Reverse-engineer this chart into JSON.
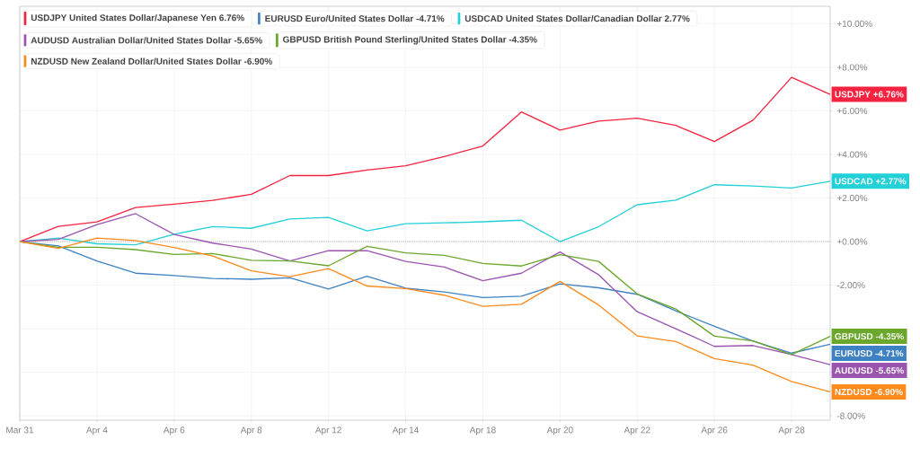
{
  "chart_data": {
    "type": "line",
    "categories": [
      "Mar 31",
      null,
      "Apr 4",
      null,
      "Apr 6",
      null,
      "Apr 8",
      null,
      "Apr 12",
      null,
      "Apr 14",
      null,
      "Apr 18",
      null,
      "Apr 20",
      null,
      "Apr 22",
      null,
      "Apr 26",
      null,
      "Apr 28",
      null
    ],
    "series": [
      {
        "name": "USDJPY   United States Dollar/Japanese Yen   6.76%",
        "color": "#f5233f",
        "values": [
          0,
          0.7,
          0.9,
          1.56,
          1.72,
          1.89,
          2.17,
          3.03,
          3.03,
          3.28,
          3.48,
          3.9,
          4.39,
          5.95,
          5.12,
          5.53,
          5.66,
          5.33,
          4.59,
          5.57,
          7.54,
          6.76
        ],
        "value_labels": [
          null,
          null,
          null,
          null,
          null,
          null,
          null,
          null,
          null,
          null,
          null,
          null,
          null,
          null,
          null,
          null,
          null,
          null,
          null,
          null,
          null,
          "USDJPY   +6.76%"
        ]
      },
      {
        "name": "EURUSD   Euro/United States Dollar   -4.71%",
        "color": "#3f82c4",
        "values": [
          0,
          -0.2,
          -0.89,
          -1.45,
          -1.56,
          -1.69,
          -1.73,
          -1.66,
          -2.18,
          -1.59,
          -2.14,
          -2.31,
          -2.57,
          -2.51,
          -1.94,
          -2.12,
          -2.42,
          -3.18,
          -3.89,
          -4.57,
          -5.12,
          -4.71
        ],
        "value_labels": [
          null,
          null,
          null,
          null,
          null,
          null,
          null,
          null,
          null,
          null,
          null,
          null,
          null,
          null,
          null,
          null,
          null,
          null,
          null,
          null,
          null,
          "EURUSD   -4.71%"
        ]
      },
      {
        "name": "USDCAD   United States Dollar/Canadian Dollar   2.77%",
        "color": "#22d0d8",
        "values": [
          0,
          0.16,
          -0.1,
          -0.15,
          0.34,
          0.69,
          0.61,
          1.04,
          1.11,
          0.49,
          0.82,
          0.86,
          0.91,
          0.98,
          0.0,
          0.68,
          1.69,
          1.9,
          2.61,
          2.55,
          2.46,
          2.77
        ],
        "value_labels": [
          null,
          null,
          null,
          null,
          null,
          null,
          null,
          null,
          null,
          null,
          null,
          null,
          null,
          null,
          null,
          null,
          null,
          null,
          null,
          null,
          null,
          "USDCAD   +2.77%"
        ]
      },
      {
        "name": "AUDUSD   Australian Dollar/United States Dollar   -5.65%",
        "color": "#9b55b0",
        "values": [
          0,
          0.1,
          0.78,
          1.28,
          0.33,
          -0.07,
          -0.34,
          -0.89,
          -0.42,
          -0.42,
          -0.91,
          -1.17,
          -1.8,
          -1.45,
          -0.48,
          -1.52,
          -3.22,
          -4.0,
          -4.81,
          -4.77,
          -5.19,
          -5.65
        ],
        "value_labels": [
          null,
          null,
          null,
          null,
          null,
          null,
          null,
          null,
          null,
          null,
          null,
          null,
          null,
          null,
          null,
          null,
          null,
          null,
          null,
          null,
          null,
          "AUDUSD   -5.65%"
        ]
      },
      {
        "name": "GBPUSD   British Pound Sterling/United States Dollar   -4.35%",
        "color": "#6aa72a",
        "values": [
          0,
          -0.26,
          -0.26,
          -0.37,
          -0.59,
          -0.55,
          -0.86,
          -0.89,
          -1.11,
          -0.22,
          -0.52,
          -0.63,
          -1.0,
          -1.12,
          -0.6,
          -0.91,
          -2.4,
          -3.09,
          -4.34,
          -4.56,
          -5.19,
          -4.35
        ],
        "value_labels": [
          null,
          null,
          null,
          null,
          null,
          null,
          null,
          null,
          null,
          null,
          null,
          null,
          null,
          null,
          null,
          null,
          null,
          null,
          null,
          null,
          null,
          "GBPUSD   -4.35%"
        ]
      },
      {
        "name": "NZDUSD   New Zealand Dollar/United States Dollar   -6.90%",
        "color": "#ff8a1c",
        "values": [
          0,
          -0.31,
          0.16,
          0.05,
          -0.27,
          -0.66,
          -1.34,
          -1.61,
          -1.24,
          -2.04,
          -2.16,
          -2.46,
          -2.97,
          -2.88,
          -1.83,
          -2.91,
          -4.33,
          -4.59,
          -5.37,
          -5.67,
          -6.42,
          -6.9
        ],
        "value_labels": [
          null,
          null,
          null,
          null,
          null,
          null,
          null,
          null,
          null,
          null,
          null,
          null,
          null,
          null,
          null,
          null,
          null,
          null,
          null,
          null,
          null,
          "NZDUSD   -6.90%"
        ]
      }
    ],
    "ylim": [
      -8.2,
      10.8
    ],
    "yticks": [
      {
        "value": -8,
        "label": "-8.00%"
      },
      {
        "value": -6,
        "label": null
      },
      {
        "value": -4,
        "label": null
      },
      {
        "value": -2,
        "label": "-2.00%"
      },
      {
        "value": 0,
        "label": "+0.00%"
      },
      {
        "value": 2,
        "label": "+2.00%"
      },
      {
        "value": 4,
        "label": "+4.00%"
      },
      {
        "value": 6,
        "label": "+6.00%"
      },
      {
        "value": 8,
        "label": "+8.00%"
      },
      {
        "value": 10,
        "label": "+10.00%"
      }
    ],
    "ref_lines": [
      {
        "axis": "y",
        "value": 0,
        "color": "#888888",
        "line_style": "dotted"
      }
    ],
    "grid": true,
    "legend": "top left"
  }
}
